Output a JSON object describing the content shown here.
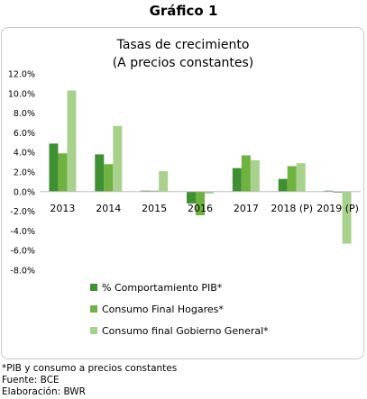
{
  "heading": "Gráfico 1",
  "chart_data": {
    "type": "bar",
    "title": "Tasas de crecimiento",
    "subtitle": "(A precios constantes)",
    "categories": [
      "2013",
      "2014",
      "2015",
      "2016",
      "2017",
      "2018 (P)",
      "2019 (P)"
    ],
    "series": [
      {
        "name": "% Comportamiento PIB*",
        "color": "#3f8f33",
        "values": [
          4.9,
          3.8,
          0.1,
          -1.2,
          2.4,
          1.3,
          0.1
        ]
      },
      {
        "name": "Consumo Final Hogares*",
        "color": "#6fb23f",
        "values": [
          3.9,
          2.8,
          0.1,
          -2.4,
          3.7,
          2.6,
          -0.1
        ]
      },
      {
        "name": "Consumo final Gobierno General*",
        "color": "#a9d18e",
        "values": [
          10.3,
          6.7,
          2.1,
          -0.2,
          3.2,
          2.9,
          -5.3
        ]
      }
    ],
    "ylim": [
      -8,
      12
    ],
    "yticks": [
      -8,
      -6,
      -4,
      -2,
      0,
      2,
      4,
      6,
      8,
      10,
      12
    ],
    "ytick_labels": [
      "-8.0%",
      "-6.0%",
      "-4.0%",
      "-2.0%",
      "0.0%",
      "2.0%",
      "4.0%",
      "6.0%",
      "8.0%",
      "10.0%",
      "12.0%"
    ],
    "grid": false,
    "legend_position": "bottom-left"
  },
  "notes": [
    "*PIB y consumo a precios constantes",
    "Fuente: BCE",
    "Elaboración: BWR"
  ]
}
